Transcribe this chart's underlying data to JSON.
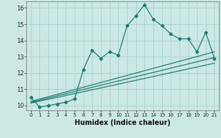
{
  "title": "",
  "xlabel": "Humidex (Indice chaleur)",
  "xlim": [
    -0.5,
    21.5
  ],
  "ylim": [
    9.7,
    16.4
  ],
  "xticks": [
    0,
    1,
    2,
    3,
    4,
    5,
    6,
    7,
    8,
    9,
    10,
    11,
    12,
    13,
    14,
    15,
    16,
    17,
    18,
    19,
    20,
    21
  ],
  "yticks": [
    10,
    11,
    12,
    13,
    14,
    15,
    16
  ],
  "bg_color": "#cce8e4",
  "grid_color": "#aad4cf",
  "line_color": "#1a7a6e",
  "line1_x": [
    0,
    1,
    2,
    3,
    4,
    5,
    6,
    7,
    8,
    9,
    10,
    11,
    12,
    13,
    14,
    15,
    16,
    17,
    18,
    19,
    20,
    21
  ],
  "line1_y": [
    10.5,
    9.9,
    10.0,
    10.1,
    10.2,
    10.4,
    12.2,
    13.4,
    12.9,
    13.3,
    13.1,
    14.9,
    15.5,
    16.2,
    15.3,
    14.9,
    14.4,
    14.1,
    14.1,
    13.3,
    14.5,
    12.9
  ],
  "line2_x": [
    0,
    21
  ],
  "line2_y": [
    10.25,
    13.3
  ],
  "line3_x": [
    0,
    21
  ],
  "line3_y": [
    10.2,
    12.95
  ],
  "line4_x": [
    0,
    21
  ],
  "line4_y": [
    10.15,
    12.6
  ]
}
